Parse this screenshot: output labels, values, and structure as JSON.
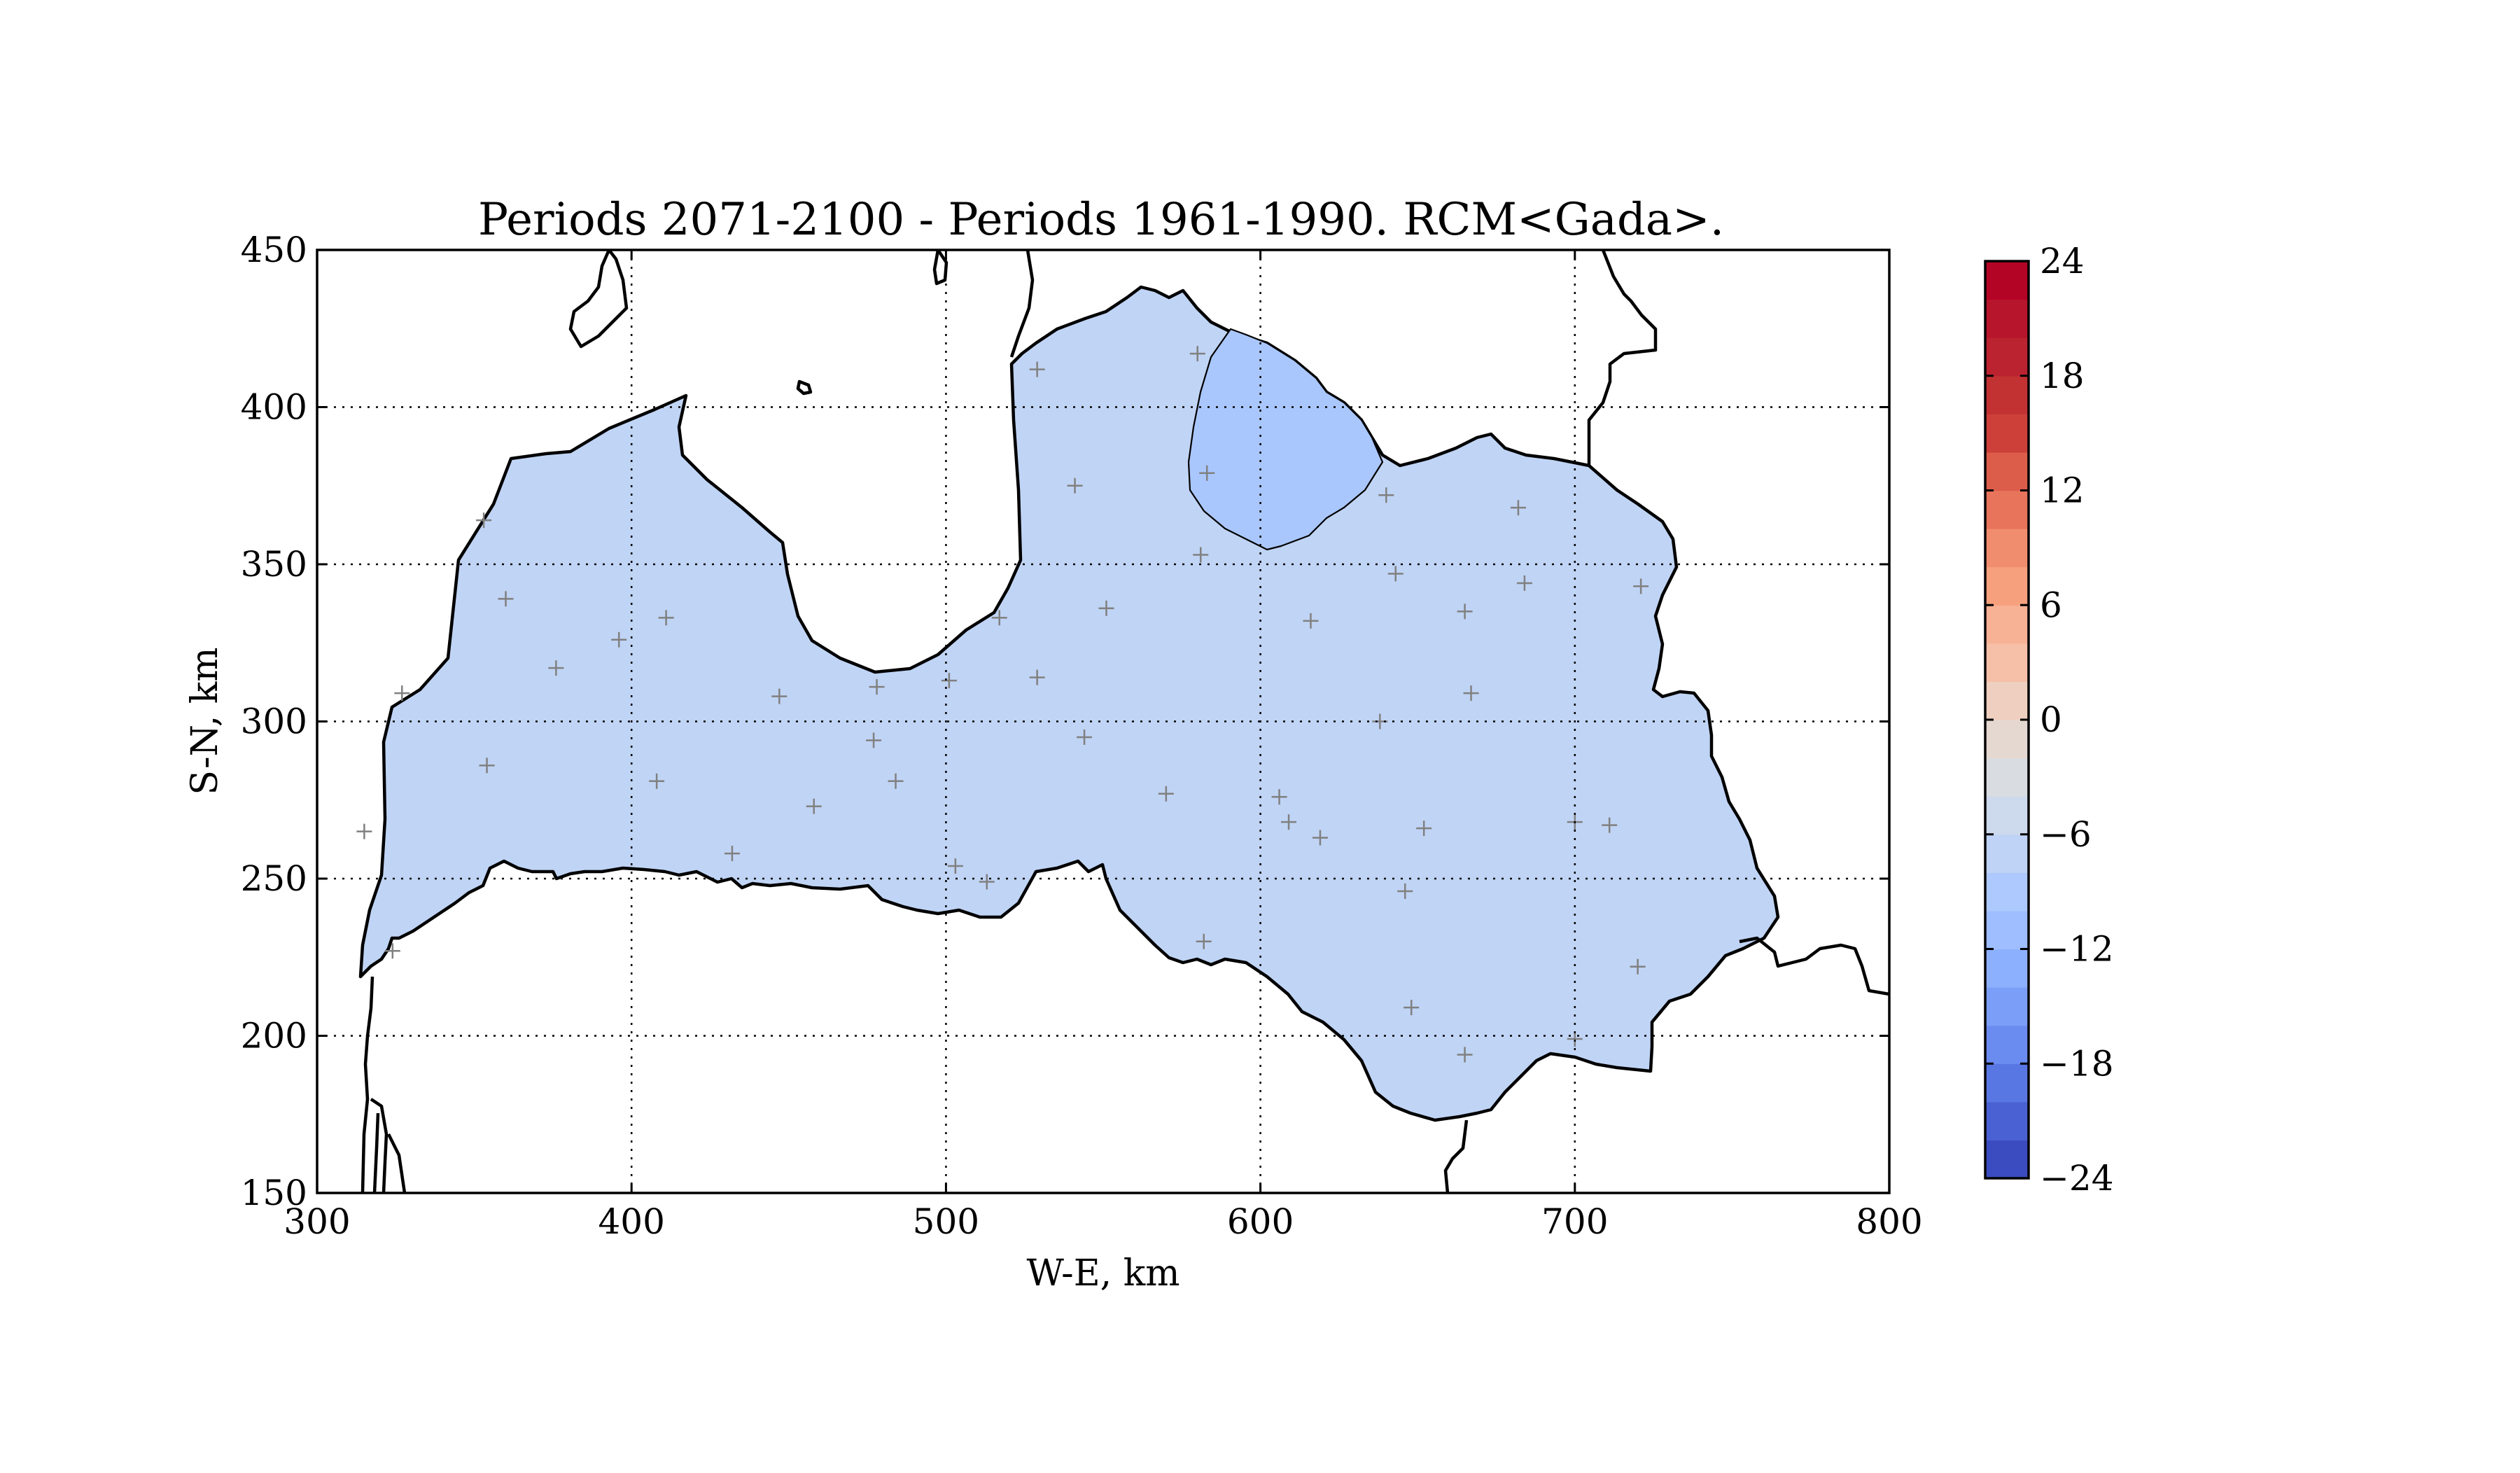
{
  "chart_data": {
    "type": "filled-contour-map",
    "title": "Periods 2071-2100 - Periods 1961-1990. RCM<Gada>.",
    "xlabel": "W-E, km",
    "ylabel": "S-N, km",
    "xlim": [
      300,
      800
    ],
    "ylim": [
      150,
      450
    ],
    "xticks": [
      "300",
      "400",
      "500",
      "600",
      "700",
      "800"
    ],
    "yticks": [
      "150",
      "200",
      "250",
      "300",
      "350",
      "400",
      "450"
    ],
    "grid": true,
    "colorbar": {
      "min": -24,
      "max": 24,
      "step": 2,
      "tick_labels": [
        "24",
        "18",
        "12",
        "6",
        "0",
        "−6",
        "−12",
        "−18",
        "−24"
      ],
      "tick_values": [
        24,
        18,
        12,
        6,
        0,
        -6,
        -12,
        -18,
        -24
      ],
      "colors": [
        "#3b4cc0",
        "#4961d2",
        "#5977e3",
        "#6a8bef",
        "#7b9ff9",
        "#8db0fe",
        "#9ebeff",
        "#aec9fd",
        "#bfd3f6",
        "#cdd9ec",
        "#d9dce1",
        "#e5d8d1",
        "#efcfbf",
        "#f5c0a7",
        "#f7b194",
        "#f6a07e",
        "#f18d6f",
        "#e7745b",
        "#dc5d4a",
        "#cc4039",
        "#b40426",
        "#b40426",
        "#b40426",
        "#b40426"
      ],
      "palette": "coolwarm"
    },
    "fill_colors": {
      "region_main": "#c0d4f5",
      "region_north": "#aac7fd",
      "coastline": "#000000",
      "station_marker": "#808080"
    },
    "stations": [
      [
        580,
        417
      ],
      [
        529,
        412
      ],
      [
        541,
        375
      ],
      [
        583,
        379
      ],
      [
        581,
        353
      ],
      [
        640,
        372
      ],
      [
        643,
        347
      ],
      [
        682,
        368
      ],
      [
        684,
        344
      ],
      [
        665,
        335
      ],
      [
        721,
        343
      ],
      [
        616,
        332
      ],
      [
        551,
        336
      ],
      [
        517,
        333
      ],
      [
        529,
        314
      ],
      [
        501,
        313
      ],
      [
        478,
        311
      ],
      [
        477,
        294
      ],
      [
        447,
        308
      ],
      [
        411,
        333
      ],
      [
        396,
        326
      ],
      [
        376,
        317
      ],
      [
        360,
        339
      ],
      [
        353,
        364
      ],
      [
        327,
        309
      ],
      [
        354,
        286
      ],
      [
        408,
        281
      ],
      [
        458,
        273
      ],
      [
        484,
        281
      ],
      [
        544,
        295
      ],
      [
        570,
        277
      ],
      [
        606,
        276
      ],
      [
        609,
        268
      ],
      [
        619,
        263
      ],
      [
        638,
        300
      ],
      [
        667,
        309
      ],
      [
        652,
        266
      ],
      [
        646,
        246
      ],
      [
        700,
        268
      ],
      [
        711,
        267
      ],
      [
        720,
        222
      ],
      [
        700,
        199
      ],
      [
        648,
        209
      ],
      [
        665,
        194
      ],
      [
        582,
        230
      ],
      [
        503,
        254
      ],
      [
        513,
        249
      ],
      [
        432,
        258
      ],
      [
        324,
        227
      ],
      [
        315,
        265
      ]
    ]
  }
}
